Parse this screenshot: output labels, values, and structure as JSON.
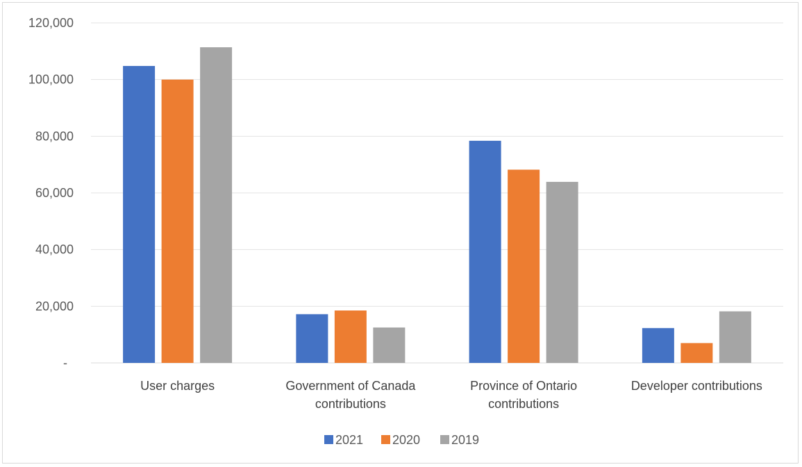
{
  "chart_data": {
    "type": "bar",
    "categories": [
      [
        "User charges"
      ],
      [
        "Government of Canada",
        "contributions"
      ],
      [
        "Province of Ontario",
        "contributions"
      ],
      [
        "Developer contributions"
      ]
    ],
    "series": [
      {
        "name": "2021",
        "color": "#4472c4",
        "values": [
          104800,
          17200,
          78400,
          12300
        ]
      },
      {
        "name": "2020",
        "color": "#ed7d31",
        "values": [
          100000,
          18500,
          68200,
          7000
        ]
      },
      {
        "name": "2019",
        "color": "#a5a5a5",
        "values": [
          111400,
          12500,
          63900,
          18200
        ]
      }
    ],
    "y_ticks": [
      {
        "value": 0,
        "label": "-"
      },
      {
        "value": 20000,
        "label": "20,000"
      },
      {
        "value": 40000,
        "label": "40,000"
      },
      {
        "value": 60000,
        "label": "60,000"
      },
      {
        "value": 80000,
        "label": "80,000"
      },
      {
        "value": 100000,
        "label": "100,000"
      },
      {
        "value": 120000,
        "label": "120,000"
      }
    ],
    "ylim": [
      0,
      120000
    ],
    "grid": true,
    "legend_position": "bottom"
  }
}
